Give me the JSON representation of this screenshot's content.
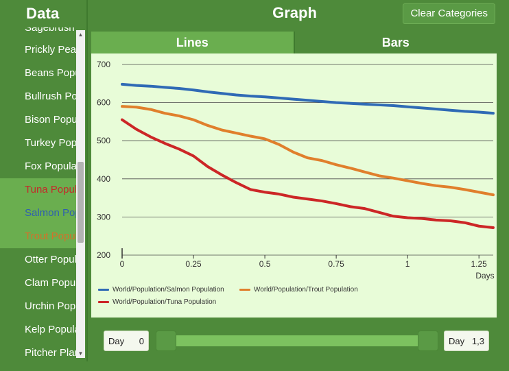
{
  "data_panel": {
    "title": "Data",
    "items": [
      {
        "label": "Sagebrush Population"
      },
      {
        "label": "Prickly Pear Population"
      },
      {
        "label": "Beans Population"
      },
      {
        "label": "Bullrush Population"
      },
      {
        "label": "Bison Population"
      },
      {
        "label": "Turkey Population"
      },
      {
        "label": "Fox Population"
      },
      {
        "label": "Tuna Population"
      },
      {
        "label": "Salmon Population"
      },
      {
        "label": "Trout Population"
      },
      {
        "label": "Otter Population"
      },
      {
        "label": "Clam Population"
      },
      {
        "label": "Urchin Population"
      },
      {
        "label": "Kelp Population"
      },
      {
        "label": "Pitcher Plant Population"
      }
    ]
  },
  "graph": {
    "title": "Graph",
    "clear_label": "Clear Categories",
    "tabs": [
      {
        "label": "Lines"
      },
      {
        "label": "Bars"
      }
    ]
  },
  "slider": {
    "start_label": "Day",
    "start_value": "0",
    "end_label": "Day",
    "end_value": "1,3",
    "start_fraction": 0,
    "end_fraction": 1
  },
  "colors": {
    "salmon": "#2f6ab5",
    "trout": "#e07f2c",
    "tuna": "#cc2626"
  },
  "chart_data": {
    "type": "line",
    "title": "",
    "xlabel": "Days",
    "ylabel": "",
    "xlim": [
      0,
      1.3
    ],
    "ylim": [
      200,
      700
    ],
    "x_ticks": [
      0,
      0.25,
      0.5,
      0.75,
      1,
      1.25
    ],
    "x_tick_labels": [
      "0",
      "0.25",
      "0.5",
      "0.75",
      "1",
      "1.25"
    ],
    "y_ticks": [
      200,
      300,
      400,
      500,
      600,
      700
    ],
    "y_tick_labels": [
      "200",
      "300",
      "400",
      "500",
      "600",
      "700"
    ],
    "series": [
      {
        "name": "World/Population/Salmon Population",
        "color_key": "salmon",
        "x": [
          0,
          0.05,
          0.1,
          0.15,
          0.2,
          0.25,
          0.3,
          0.35,
          0.4,
          0.45,
          0.5,
          0.55,
          0.6,
          0.65,
          0.7,
          0.75,
          0.8,
          0.85,
          0.9,
          0.95,
          1.0,
          1.05,
          1.1,
          1.15,
          1.2,
          1.25,
          1.3
        ],
        "values": [
          648,
          645,
          643,
          640,
          637,
          633,
          628,
          624,
          620,
          617,
          615,
          612,
          609,
          606,
          603,
          600,
          598,
          596,
          594,
          592,
          589,
          586,
          583,
          580,
          577,
          575,
          572
        ]
      },
      {
        "name": "World/Population/Trout Population",
        "color_key": "trout",
        "x": [
          0,
          0.05,
          0.1,
          0.15,
          0.2,
          0.25,
          0.3,
          0.35,
          0.4,
          0.45,
          0.5,
          0.55,
          0.6,
          0.65,
          0.7,
          0.75,
          0.8,
          0.85,
          0.9,
          0.95,
          1.0,
          1.05,
          1.1,
          1.15,
          1.2,
          1.25,
          1.3
        ],
        "values": [
          590,
          588,
          582,
          572,
          565,
          555,
          540,
          528,
          520,
          512,
          505,
          490,
          470,
          455,
          448,
          437,
          428,
          418,
          408,
          402,
          395,
          388,
          382,
          378,
          372,
          365,
          358
        ]
      },
      {
        "name": "World/Population/Tuna Population",
        "color_key": "tuna",
        "x": [
          0,
          0.05,
          0.1,
          0.15,
          0.2,
          0.25,
          0.3,
          0.35,
          0.4,
          0.45,
          0.5,
          0.55,
          0.6,
          0.65,
          0.7,
          0.75,
          0.8,
          0.85,
          0.9,
          0.95,
          1.0,
          1.05,
          1.1,
          1.15,
          1.2,
          1.25,
          1.3
        ],
        "values": [
          555,
          530,
          510,
          493,
          478,
          460,
          432,
          410,
          390,
          372,
          365,
          360,
          352,
          347,
          342,
          335,
          327,
          322,
          312,
          302,
          298,
          296,
          292,
          290,
          285,
          276,
          272
        ]
      }
    ]
  }
}
